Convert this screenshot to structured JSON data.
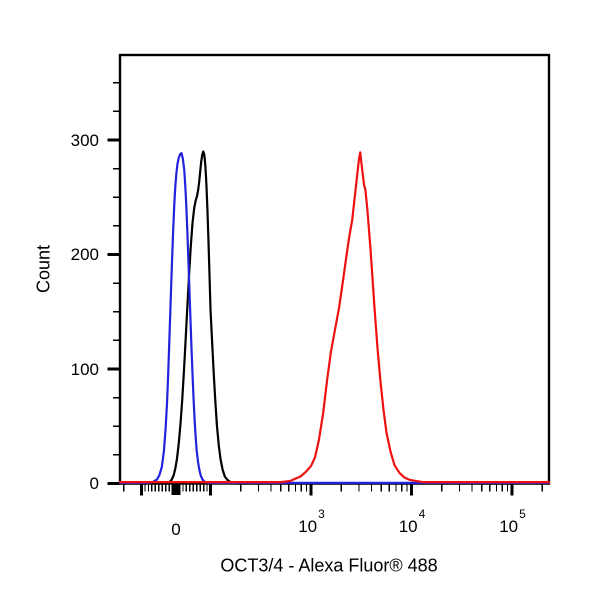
{
  "chart_data": {
    "type": "line",
    "subtype": "flow-cytometry-histogram-overlay",
    "title": "",
    "xlabel": "OCT3/4 - Alexa Fluor® 488",
    "ylabel": "Count",
    "x_scale": "biexponential",
    "x_linthresh": 100,
    "xlim": [
      -164,
      242000
    ],
    "ylim": [
      0,
      375
    ],
    "grid": false,
    "legend": "none",
    "y_ticks_major": [
      {
        "value": 0,
        "label": "0"
      },
      {
        "value": 100,
        "label": "100"
      },
      {
        "value": 200,
        "label": "200"
      },
      {
        "value": 300,
        "label": "300"
      }
    ],
    "y_minor_step": 25,
    "y_minor_max": 350,
    "x_ticks_major": [
      {
        "value": -100,
        "label": ""
      },
      {
        "value": 0,
        "label": "0",
        "wide": true
      },
      {
        "value": 100,
        "label": ""
      },
      {
        "value": 1000,
        "base": "10",
        "exp": "3"
      },
      {
        "value": 10000,
        "base": "10",
        "exp": "4"
      },
      {
        "value": 100000,
        "base": "10",
        "exp": "5"
      }
    ],
    "x_minor_linear": {
      "from": -90,
      "to": 90,
      "step": 10
    },
    "x_minor_log_decades": [
      100,
      1000,
      10000
    ],
    "x_minor_multiples": [
      2,
      3,
      4,
      5,
      6,
      7,
      8,
      9
    ],
    "x_minor_extra": [
      -150,
      200000
    ],
    "colors": {
      "axis": "#000000",
      "blue": "#2222dd",
      "black": "#000000",
      "red": "#ee1111"
    },
    "series": [
      {
        "name": "black",
        "color": "#000000",
        "peak": {
          "x": 79,
          "count": 290
        },
        "points": [
          [
            -164,
            0
          ],
          [
            -30,
            0
          ],
          [
            -20,
            1
          ],
          [
            -13,
            3
          ],
          [
            -7,
            7
          ],
          [
            -2,
            13
          ],
          [
            3,
            22
          ],
          [
            8,
            35
          ],
          [
            13,
            52
          ],
          [
            18,
            73
          ],
          [
            23,
            98
          ],
          [
            28,
            126
          ],
          [
            33,
            155
          ],
          [
            38,
            183
          ],
          [
            43,
            208
          ],
          [
            48,
            228
          ],
          [
            53,
            241
          ],
          [
            57,
            247
          ],
          [
            61,
            251
          ],
          [
            64,
            256
          ],
          [
            67,
            263
          ],
          [
            70,
            272
          ],
          [
            73,
            281
          ],
          [
            76,
            287
          ],
          [
            79,
            290
          ],
          [
            82,
            287
          ],
          [
            85,
            278
          ],
          [
            88,
            262
          ],
          [
            91,
            240
          ],
          [
            94,
            213
          ],
          [
            97,
            183
          ],
          [
            100,
            152
          ],
          [
            104,
            122
          ],
          [
            108,
            94
          ],
          [
            112,
            70
          ],
          [
            116,
            50
          ],
          [
            121,
            33
          ],
          [
            126,
            21
          ],
          [
            132,
            12
          ],
          [
            139,
            6
          ],
          [
            148,
            3
          ],
          [
            160,
            1
          ],
          [
            175,
            0
          ],
          [
            242000,
            0
          ]
        ]
      },
      {
        "name": "blue",
        "color": "#2222dd",
        "peak": {
          "x": 16,
          "count": 288
        },
        "points": [
          [
            -164,
            0
          ],
          [
            -100,
            0
          ],
          [
            -80,
            0
          ],
          [
            -66,
            1
          ],
          [
            -55,
            3
          ],
          [
            -48,
            7
          ],
          [
            -41,
            14
          ],
          [
            -35,
            28
          ],
          [
            -30,
            48
          ],
          [
            -26,
            70
          ],
          [
            -23,
            92
          ],
          [
            -20,
            118
          ],
          [
            -17,
            145
          ],
          [
            -14,
            172
          ],
          [
            -11,
            198
          ],
          [
            -8,
            222
          ],
          [
            -5,
            243
          ],
          [
            -2,
            259
          ],
          [
            1,
            270
          ],
          [
            4,
            278
          ],
          [
            8,
            284
          ],
          [
            12,
            287
          ],
          [
            16,
            288
          ],
          [
            20,
            283
          ],
          [
            24,
            273
          ],
          [
            27,
            259
          ],
          [
            30,
            241
          ],
          [
            33,
            219
          ],
          [
            36,
            194
          ],
          [
            39,
            168
          ],
          [
            42,
            142
          ],
          [
            45,
            117
          ],
          [
            48,
            94
          ],
          [
            51,
            73
          ],
          [
            54,
            55
          ],
          [
            57,
            40
          ],
          [
            60,
            28
          ],
          [
            64,
            18
          ],
          [
            68,
            11
          ],
          [
            72,
            6
          ],
          [
            77,
            3
          ],
          [
            83,
            1
          ],
          [
            92,
            0
          ],
          [
            242000,
            0
          ]
        ]
      },
      {
        "name": "red",
        "color": "#ee1111",
        "peak": {
          "x": 3090,
          "count": 288
        },
        "points": [
          [
            -164,
            0
          ],
          [
            500,
            0
          ],
          [
            620,
            1
          ],
          [
            700,
            3
          ],
          [
            790,
            5
          ],
          [
            890,
            9
          ],
          [
            1000,
            14
          ],
          [
            1100,
            22
          ],
          [
            1200,
            37
          ],
          [
            1320,
            60
          ],
          [
            1450,
            90
          ],
          [
            1580,
            114
          ],
          [
            1740,
            134
          ],
          [
            1900,
            152
          ],
          [
            2090,
            177
          ],
          [
            2240,
            196
          ],
          [
            2400,
            214
          ],
          [
            2570,
            229
          ],
          [
            2750,
            252
          ],
          [
            2880,
            268
          ],
          [
            3000,
            282
          ],
          [
            3090,
            288
          ],
          [
            3230,
            273
          ],
          [
            3380,
            259
          ],
          [
            3470,
            256
          ],
          [
            3630,
            239
          ],
          [
            3890,
            206
          ],
          [
            4070,
            181
          ],
          [
            4270,
            154
          ],
          [
            4570,
            119
          ],
          [
            4900,
            89
          ],
          [
            5250,
            64
          ],
          [
            5620,
            44
          ],
          [
            6170,
            27
          ],
          [
            6760,
            15
          ],
          [
            7590,
            8
          ],
          [
            8510,
            4
          ],
          [
            9550,
            2
          ],
          [
            11000,
            1
          ],
          [
            13000,
            0
          ],
          [
            242000,
            0
          ]
        ]
      }
    ]
  }
}
